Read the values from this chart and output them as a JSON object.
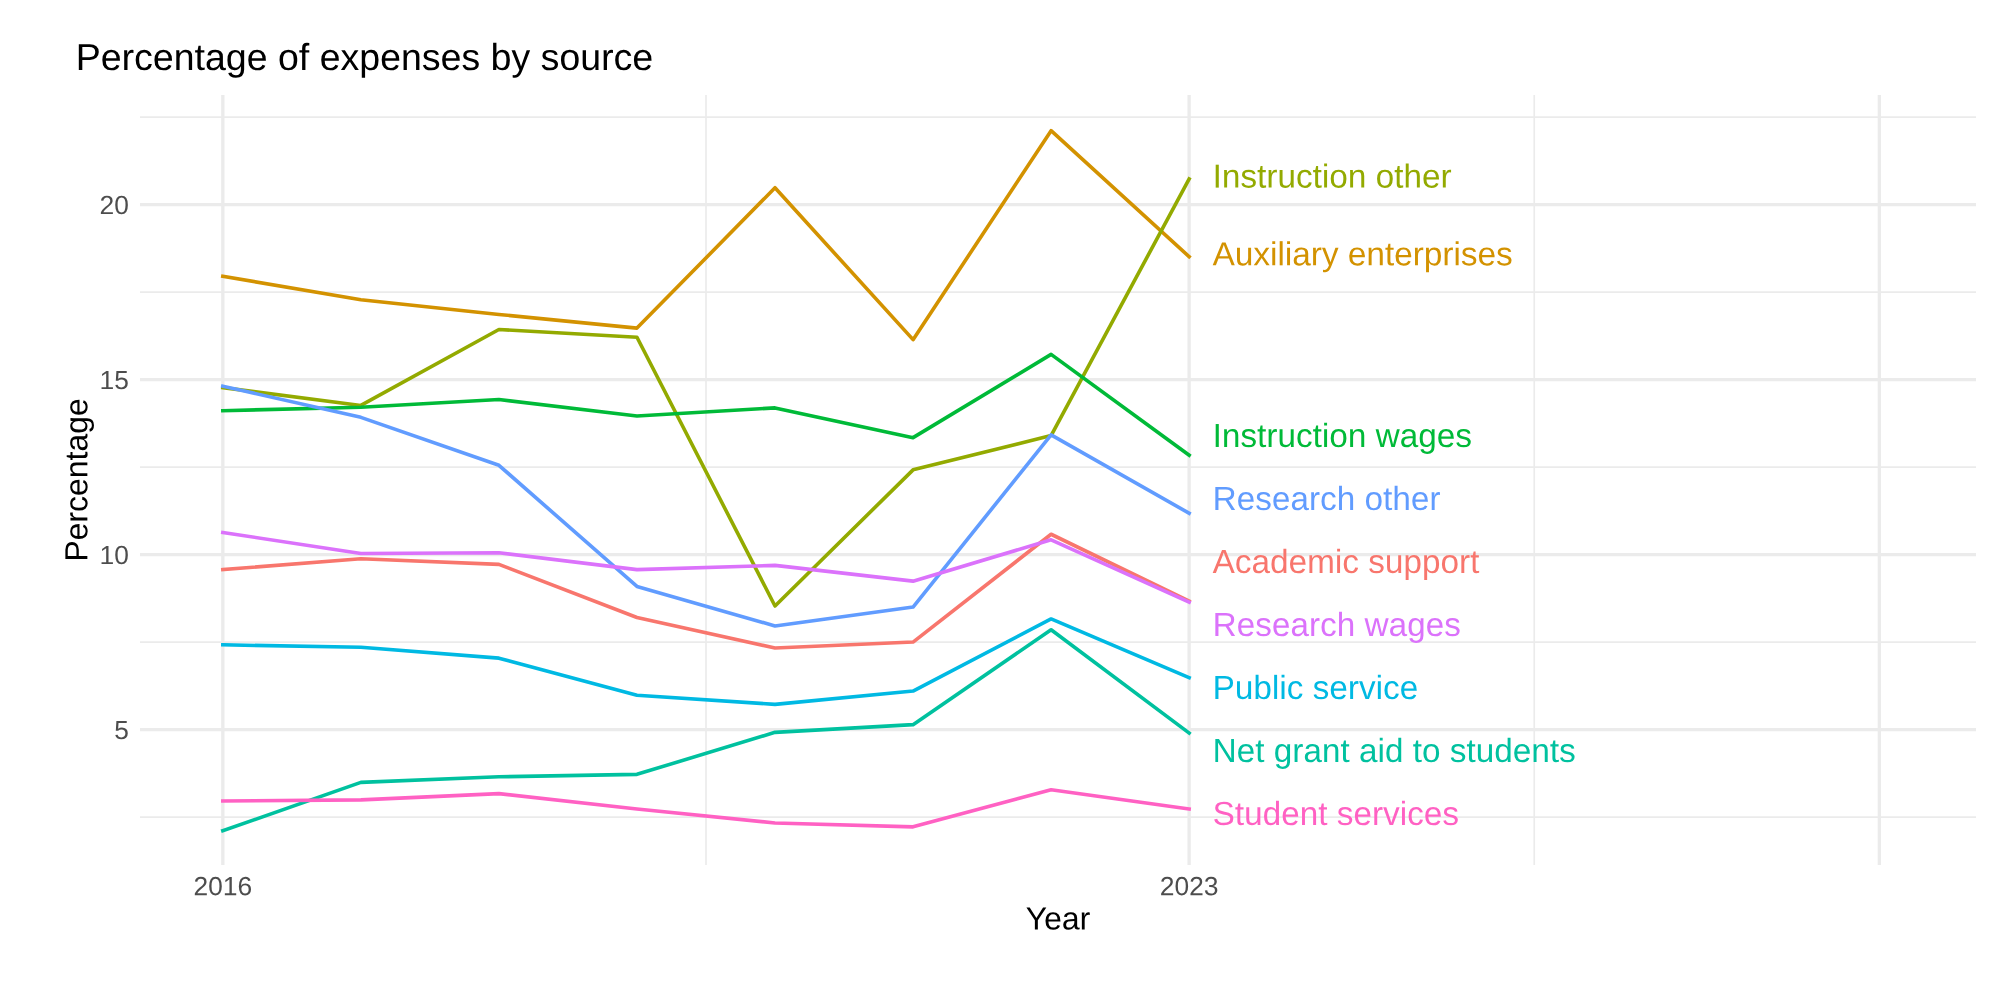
{
  "chart_data": {
    "type": "line",
    "title": "Percentage of expenses by source",
    "xlabel": "Year",
    "ylabel": "Percentage",
    "x": [
      2016,
      2017,
      2018,
      2019,
      2020,
      2021,
      2022,
      2023
    ],
    "series": [
      {
        "name": "Academic support",
        "color": "#f8766d",
        "values": [
          9.57,
          9.88,
          9.72,
          8.2,
          7.33,
          7.5,
          10.58,
          8.67
        ]
      },
      {
        "name": "Auxiliary enterprises",
        "color": "#d39200",
        "values": [
          17.95,
          17.28,
          16.86,
          16.47,
          20.48,
          16.14,
          22.11,
          18.51
        ]
      },
      {
        "name": "Instruction other",
        "color": "#93aa00",
        "values": [
          14.77,
          14.26,
          16.43,
          16.21,
          8.53,
          12.42,
          13.4,
          20.73
        ]
      },
      {
        "name": "Instruction wages",
        "color": "#00ba38",
        "values": [
          14.11,
          14.21,
          14.43,
          13.96,
          14.19,
          13.34,
          15.72,
          12.84
        ]
      },
      {
        "name": "Net grant aid to students",
        "color": "#00c19f",
        "values": [
          2.11,
          3.49,
          3.65,
          3.72,
          4.92,
          5.14,
          7.85,
          4.9
        ]
      },
      {
        "name": "Public service",
        "color": "#00b9e3",
        "values": [
          7.42,
          7.35,
          7.04,
          5.98,
          5.72,
          6.1,
          8.16,
          6.48
        ]
      },
      {
        "name": "Research other",
        "color": "#619cff",
        "values": [
          14.81,
          13.92,
          12.55,
          9.09,
          7.96,
          8.5,
          13.42,
          11.18
        ]
      },
      {
        "name": "Research wages",
        "color": "#db72fb",
        "values": [
          10.63,
          10.03,
          10.05,
          9.57,
          9.69,
          9.24,
          10.42,
          8.64
        ]
      },
      {
        "name": "Student services",
        "color": "#ff61c3",
        "values": [
          2.96,
          2.99,
          3.17,
          2.73,
          2.33,
          2.22,
          3.28,
          2.73
        ]
      }
    ],
    "xlim": [
      2015.4,
      2028.7
    ],
    "xticks": [
      2016,
      2023,
      {
        "value": 2028,
        "label": null
      }
    ],
    "ylim": [
      1.13,
      23.13
    ],
    "yticks": [
      5,
      10,
      15,
      20
    ],
    "grid": true,
    "legend": false,
    "marker": "none",
    "line_style": "solid"
  }
}
